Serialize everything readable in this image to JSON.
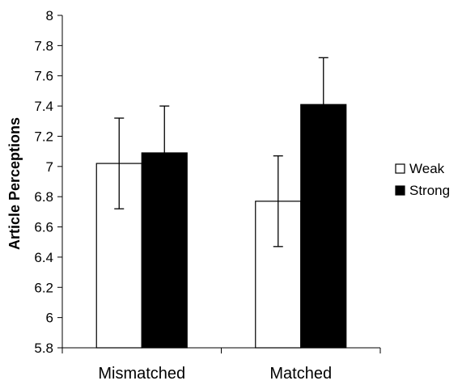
{
  "chart_data": {
    "type": "bar",
    "title": "",
    "xlabel": "",
    "ylabel": "Article Perceptions",
    "categories": [
      "Mismatched",
      "Matched"
    ],
    "series": [
      {
        "name": "Weak",
        "values": [
          7.02,
          6.77
        ],
        "errors": [
          0.3,
          0.3
        ],
        "fill": "#ffffff"
      },
      {
        "name": "Strong",
        "values": [
          7.09,
          7.41
        ],
        "errors": [
          0.31,
          0.31
        ],
        "fill": "#000000"
      }
    ],
    "ylim": [
      5.8,
      8
    ],
    "yticks": [
      "5.8",
      "6",
      "6.2",
      "6.4",
      "6.6",
      "6.8",
      "7",
      "7.2",
      "7.4",
      "7.6",
      "7.8",
      "8"
    ],
    "grid": false,
    "legend": "right",
    "error_bars": true
  }
}
